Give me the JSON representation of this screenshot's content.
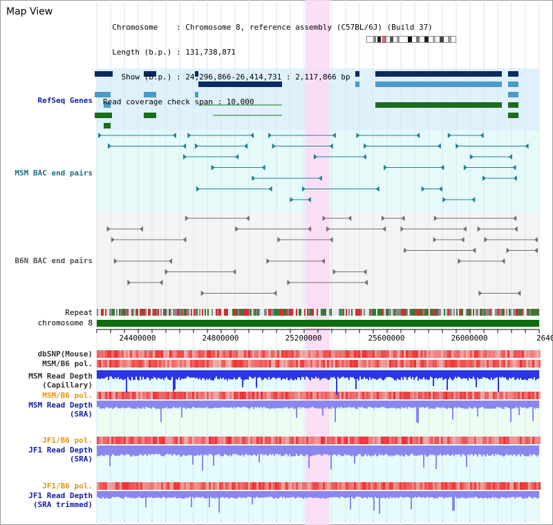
{
  "header": {
    "title": "Map View",
    "info_lines": [
      "  Chromosome    : Chromosome 8, reference assembly (C57BL/6J) (Build 37)",
      "  Length (b.p.) : 131,738,871",
      "    Show (b.p.) : 24,296,866-26,414,731 : 2,117,866 bp",
      "Read coverage check span : 10,000"
    ]
  },
  "colors": {
    "refseq_bg": "#dff1fb",
    "msm_bac_bg": "#e6fafa",
    "b6n_bac_bg": "#f4f4f4",
    "highlight": "#fbd9f5",
    "refseq_dark": "#0c2a5e",
    "refseq_light": "#4a9bc9",
    "refseq_green": "#1a6e1a",
    "msm_bac": "#1f7f96",
    "b6n_bac": "#707070",
    "chromosome_bar": "#0d6e0d",
    "depth_blue": "#2d35e8",
    "depth_sra": "#8b86ee",
    "pol_red": "#ee4444",
    "label_blue": "#1520a6",
    "label_teal": "#1a6f80",
    "label_orange": "#e2940f"
  },
  "tracks": {
    "refseq": "RefSeq Genes",
    "msm_bac": "MSM BAC end pairs",
    "b6n_bac": "B6N BAC end pairs",
    "repeat": "Repeat",
    "chromosome": "chromosome 8",
    "dbsnp": "dbSNP(Mouse)",
    "msm_b6_pol": "MSM/B6 pol.",
    "msm_depth_cap_1": "MSM Read Depth",
    "msm_depth_cap_2": "(Capillary)",
    "msm_b6_pol_2": "MSM/B6 pol.",
    "msm_depth_sra_1": "MSM Read Depth",
    "msm_depth_sra_2": "(SRA)",
    "jf1_b6_pol": "JF1/B6 pol.",
    "jf1_depth_sra_1": "JF1 Read Depth",
    "jf1_depth_sra_2": "(SRA)",
    "jf1_b6_pol_2": "JF1/B6 pol.",
    "jf1_depth_trim_1": "JF1 Read Depth",
    "jf1_depth_trim_2": "(SRA trimmed)"
  },
  "axis": {
    "ticks": [
      "24400000",
      "24800000",
      "25200000",
      "25600000",
      "26000000",
      "2640"
    ]
  }
}
